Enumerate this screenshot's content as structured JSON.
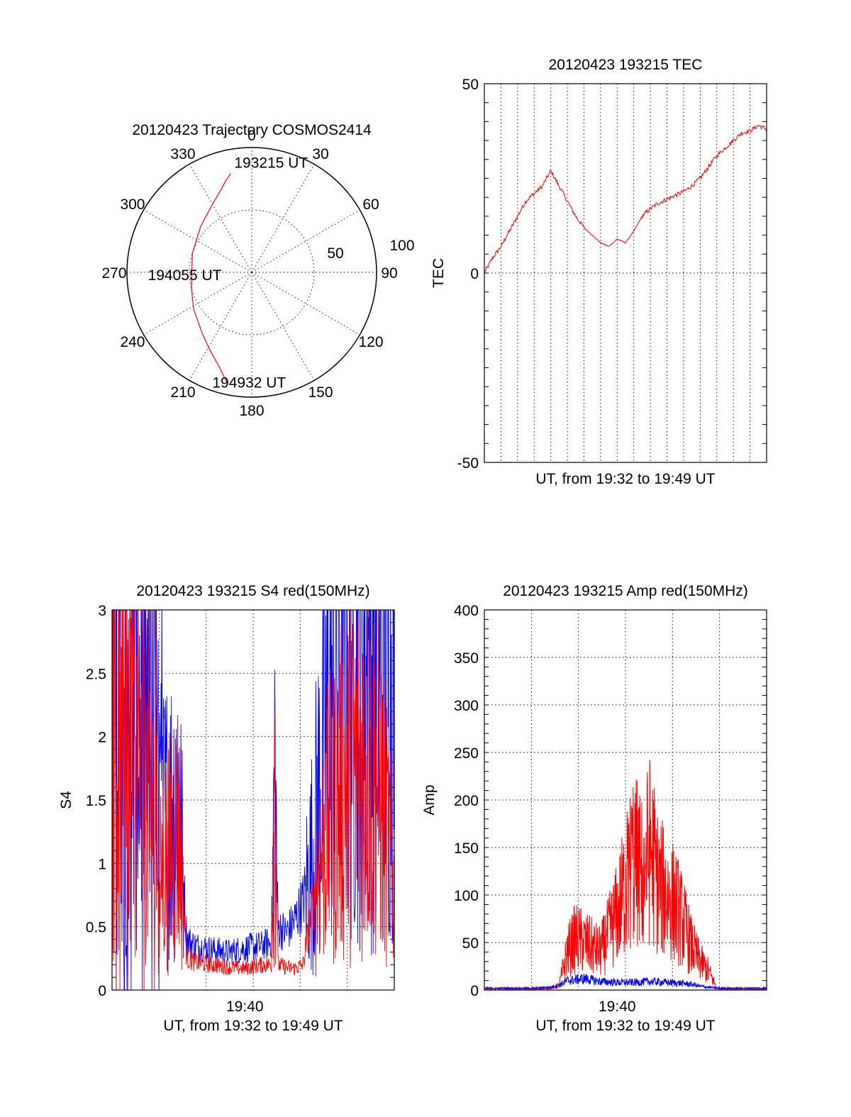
{
  "chart_data": [
    {
      "type": "polar",
      "title": "20120423 Trajectory COSMOS2414",
      "angle_labels": [
        "0",
        "30",
        "60",
        "90",
        "120",
        "150",
        "180",
        "210",
        "240",
        "270",
        "300",
        "330"
      ],
      "radius_labels": [
        "50",
        "100"
      ],
      "rlim": [
        0,
        100
      ],
      "grid": true,
      "series": [
        {
          "color": "#ff0000",
          "points": [
            {
              "az": 348,
              "el": 19
            },
            {
              "az": 344,
              "el": 24
            },
            {
              "az": 339,
              "el": 30
            },
            {
              "az": 330,
              "el": 37
            },
            {
              "az": 312,
              "el": 45
            },
            {
              "az": 288,
              "el": 50
            },
            {
              "az": 272,
              "el": 52
            },
            {
              "az": 255,
              "el": 50
            },
            {
              "az": 238,
              "el": 45
            },
            {
              "az": 219,
              "el": 37
            },
            {
              "az": 208,
              "el": 29
            },
            {
              "az": 199,
              "el": 20
            },
            {
              "az": 193,
              "el": 10
            }
          ]
        }
      ],
      "annotations": [
        {
          "text": "193215 UT",
          "az": 348,
          "el": 19
        },
        {
          "text": "194055 UT",
          "az": 272,
          "el": 52
        },
        {
          "text": "194932 UT",
          "az": 193,
          "el": 10
        }
      ]
    },
    {
      "type": "line",
      "title": "20120423 193215 TEC",
      "xlabel": "UT, from 19:32 to 19:49 UT",
      "ylabel": "TEC",
      "ylim": [
        -50,
        50
      ],
      "yticks": [
        "50",
        "0",
        "-50"
      ],
      "grid": true,
      "series": [
        {
          "color": "#ff0000",
          "x_minutes": [
            0,
            0.5,
            1,
            1.5,
            2,
            2.5,
            3,
            3.5,
            4,
            4.5,
            5,
            5.5,
            6,
            6.5,
            7,
            7.5,
            8,
            8.5,
            9,
            9.5,
            10,
            10.5,
            11,
            11.5,
            12,
            12.5,
            13,
            13.5,
            14,
            14.5,
            15,
            15.5,
            16,
            16.5,
            17
          ],
          "values": [
            0,
            4,
            7,
            11,
            15,
            19,
            21,
            23,
            27,
            23,
            19,
            15,
            12,
            10,
            8,
            7,
            9,
            8,
            11,
            15,
            17,
            18.5,
            19.5,
            20.5,
            21.5,
            23,
            25,
            28,
            31,
            33,
            35,
            37,
            37.5,
            39,
            38
          ]
        }
      ]
    },
    {
      "type": "line",
      "title": "20120423 193215 S4 red(150MHz)",
      "xlabel": "UT, from 19:32 to 19:49 UT",
      "ylabel": "S4",
      "xticks": [
        "19:40"
      ],
      "ylim": [
        0,
        3
      ],
      "yticks": [
        "3",
        "2.5",
        "2",
        "1.5",
        "1",
        "0.5",
        "0"
      ],
      "grid": true,
      "series": [
        {
          "color": "#0000ff",
          "x_minutes": [
            0,
            1,
            2,
            3,
            3.5,
            4,
            4.5,
            5,
            6,
            7,
            8,
            9,
            9.6,
            9.8,
            10,
            10.5,
            11,
            11.5,
            12,
            12.5,
            13,
            14,
            15,
            16,
            17
          ],
          "values": [
            2.5,
            2.4,
            2.2,
            1.3,
            1.4,
            1.6,
            0.4,
            0.35,
            0.32,
            0.3,
            0.33,
            0.35,
            0.38,
            1.8,
            0.5,
            0.45,
            0.55,
            0.7,
            1.0,
            1.6,
            2.2,
            2.6,
            2.7,
            2.5,
            2.6
          ]
        },
        {
          "color": "#ff0000",
          "x_minutes": [
            0,
            1,
            2,
            3,
            3.5,
            4,
            4.5,
            5,
            6,
            7,
            8,
            9,
            9.6,
            9.8,
            10,
            10.5,
            11,
            11.5,
            12,
            12.5,
            13,
            14,
            15,
            16,
            17
          ],
          "values": [
            1.8,
            1.6,
            1.5,
            1.0,
            1.1,
            1.3,
            0.25,
            0.22,
            0.2,
            0.18,
            0.17,
            0.2,
            0.2,
            1.9,
            0.2,
            0.18,
            0.17,
            0.2,
            0.6,
            1.0,
            1.3,
            1.6,
            1.8,
            1.7,
            0.8
          ]
        }
      ]
    },
    {
      "type": "line",
      "title": "20120423 193215 Amp red(150MHz)",
      "xlabel": "UT, from 19:32 to 19:49 UT",
      "ylabel": "Amp",
      "xticks": [
        "19:40"
      ],
      "ylim": [
        0,
        400
      ],
      "yticks": [
        "400",
        "350",
        "300",
        "250",
        "200",
        "150",
        "100",
        "50",
        "0"
      ],
      "grid": true,
      "series": [
        {
          "color": "#ff0000",
          "x_minutes": [
            0,
            3,
            4,
            4.5,
            5,
            5.5,
            6,
            6.5,
            7,
            7.5,
            8,
            8.5,
            9,
            9.5,
            10,
            10.5,
            11,
            11.5,
            12,
            12.5,
            13,
            13.5,
            14,
            15,
            17
          ],
          "values": [
            1,
            1,
            2,
            5,
            40,
            55,
            50,
            45,
            40,
            60,
            80,
            110,
            140,
            120,
            150,
            110,
            100,
            90,
            70,
            45,
            30,
            20,
            2,
            1,
            1
          ]
        },
        {
          "color": "#0000ff",
          "x_minutes": [
            0,
            3,
            4,
            4.5,
            5,
            6,
            7,
            8,
            9,
            10,
            11,
            12,
            12.5,
            13,
            14,
            17
          ],
          "values": [
            2,
            2,
            3,
            5,
            10,
            12,
            9,
            8,
            8,
            9,
            8,
            7,
            6,
            4,
            2,
            2
          ]
        }
      ]
    }
  ]
}
